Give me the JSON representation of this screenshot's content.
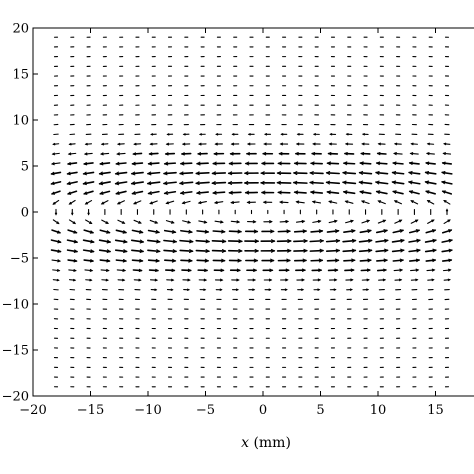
{
  "chart_data": {
    "type": "quiver",
    "xlabel": {
      "var": "x",
      "unit": "(mm)"
    },
    "ylabel": "",
    "xlim": [
      -20,
      18
    ],
    "ylim": [
      -20,
      20
    ],
    "xticks": [
      -20,
      -15,
      -10,
      -5,
      0,
      5,
      10,
      15
    ],
    "yticks": [
      -20,
      -15,
      -10,
      -5,
      0,
      5,
      10,
      15,
      20
    ],
    "grid": false,
    "field": {
      "x_range": [
        -18,
        16
      ],
      "y_range": [
        -19,
        19
      ],
      "nx": 25,
      "ny": 37,
      "center": [
        0,
        0
      ],
      "vortex_semi_axes": [
        25,
        5
      ],
      "rotation": "clockwise",
      "color": "#000000"
    }
  }
}
